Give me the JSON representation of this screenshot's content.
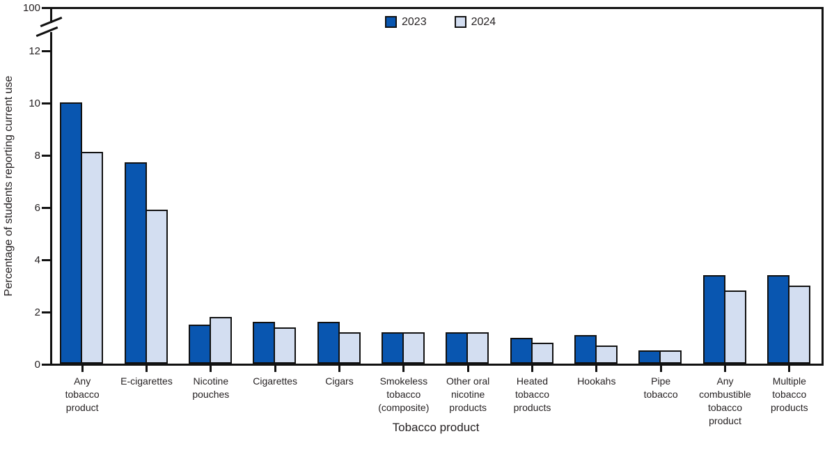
{
  "chart_data": {
    "type": "bar",
    "title": "",
    "xlabel": "Tobacco product",
    "ylabel": "Percentage of students reporting current use",
    "categories": [
      "Any tobacco product",
      "E-cigarettes",
      "Nicotine pouches",
      "Cigarettes",
      "Cigars",
      "Smokeless tobacco (composite)",
      "Other oral nicotine products",
      "Heated tobacco products",
      "Hookahs",
      "Pipe tobacco",
      "Any combustible tobacco product",
      "Multiple tobacco products"
    ],
    "category_label_lines": [
      [
        "Any",
        "tobacco",
        "product"
      ],
      [
        "E-cigarettes"
      ],
      [
        "Nicotine",
        "pouches"
      ],
      [
        "Cigarettes"
      ],
      [
        "Cigars"
      ],
      [
        "Smokeless",
        "tobacco",
        "(composite)"
      ],
      [
        "Other oral",
        "nicotine",
        "products"
      ],
      [
        "Heated",
        "tobacco",
        "products"
      ],
      [
        "Hookahs"
      ],
      [
        "Pipe",
        "tobacco"
      ],
      [
        "Any",
        "combustible",
        "tobacco",
        "product"
      ],
      [
        "Multiple",
        "tobacco",
        "products"
      ]
    ],
    "series": [
      {
        "name": "2023",
        "color": "#0956b0",
        "values": [
          10.0,
          7.7,
          1.5,
          1.6,
          1.6,
          1.2,
          1.2,
          1.0,
          1.1,
          0.5,
          3.4,
          3.4
        ]
      },
      {
        "name": "2024",
        "color": "#d3def1",
        "values": [
          8.1,
          5.9,
          1.8,
          1.4,
          1.2,
          1.2,
          1.2,
          0.8,
          0.7,
          0.5,
          2.8,
          3.0
        ]
      }
    ],
    "y_ticks": [
      0,
      2,
      4,
      6,
      8,
      10,
      12
    ],
    "ylim": [
      0,
      12
    ],
    "axis_break": {
      "upper_tick_label": "100"
    },
    "legend_position": "top-center",
    "grid": false
  },
  "colors": {
    "bar_2023": "#0956b0",
    "bar_2024": "#d3def1",
    "axis_line": "#111111",
    "text": "#231f20",
    "background": "#ffffff"
  }
}
